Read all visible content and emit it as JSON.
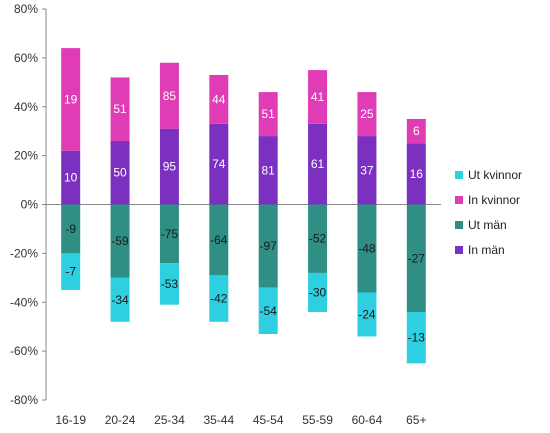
{
  "chart_data": {
    "type": "bar",
    "stacked": true,
    "categories": [
      "16-19",
      "20-24",
      "25-34",
      "35-44",
      "45-54",
      "55-59",
      "60-64",
      "65+"
    ],
    "y_tick_labels": [
      "80%",
      "60%",
      "40%",
      "20%",
      "0%",
      "-20%",
      "-40%",
      "-60%",
      "-80%"
    ],
    "ylim": [
      -80,
      80
    ],
    "grid": false,
    "legend_position": "right",
    "series": [
      {
        "name": "Ut kvinnor",
        "color": "#2ECFE0",
        "values": [
          -15,
          -18,
          -17,
          -19,
          -19,
          -16,
          -18,
          -21
        ],
        "labels": [
          "-7",
          "-34",
          "-53",
          "-42",
          "-54",
          "-30",
          "-24",
          "-13"
        ]
      },
      {
        "name": "In kvinnor",
        "color": "#E03CB6",
        "values": [
          42,
          26,
          27,
          20,
          18,
          22,
          18,
          10
        ],
        "labels": [
          "19",
          "51",
          "85",
          "44",
          "51",
          "41",
          "25",
          "6"
        ]
      },
      {
        "name": "Ut män",
        "color": "#2F8F84",
        "values": [
          -20,
          -30,
          -24,
          -29,
          -34,
          -28,
          -36,
          -44
        ],
        "labels": [
          "-9",
          "-59",
          "-75",
          "-64",
          "-97",
          "-52",
          "-48",
          "-27"
        ]
      },
      {
        "name": "In män",
        "color": "#7B30C0",
        "values": [
          22,
          26,
          31,
          33,
          28,
          33,
          28,
          25
        ],
        "labels": [
          "10",
          "50",
          "95",
          "74",
          "81",
          "61",
          "37",
          "16"
        ]
      }
    ]
  }
}
